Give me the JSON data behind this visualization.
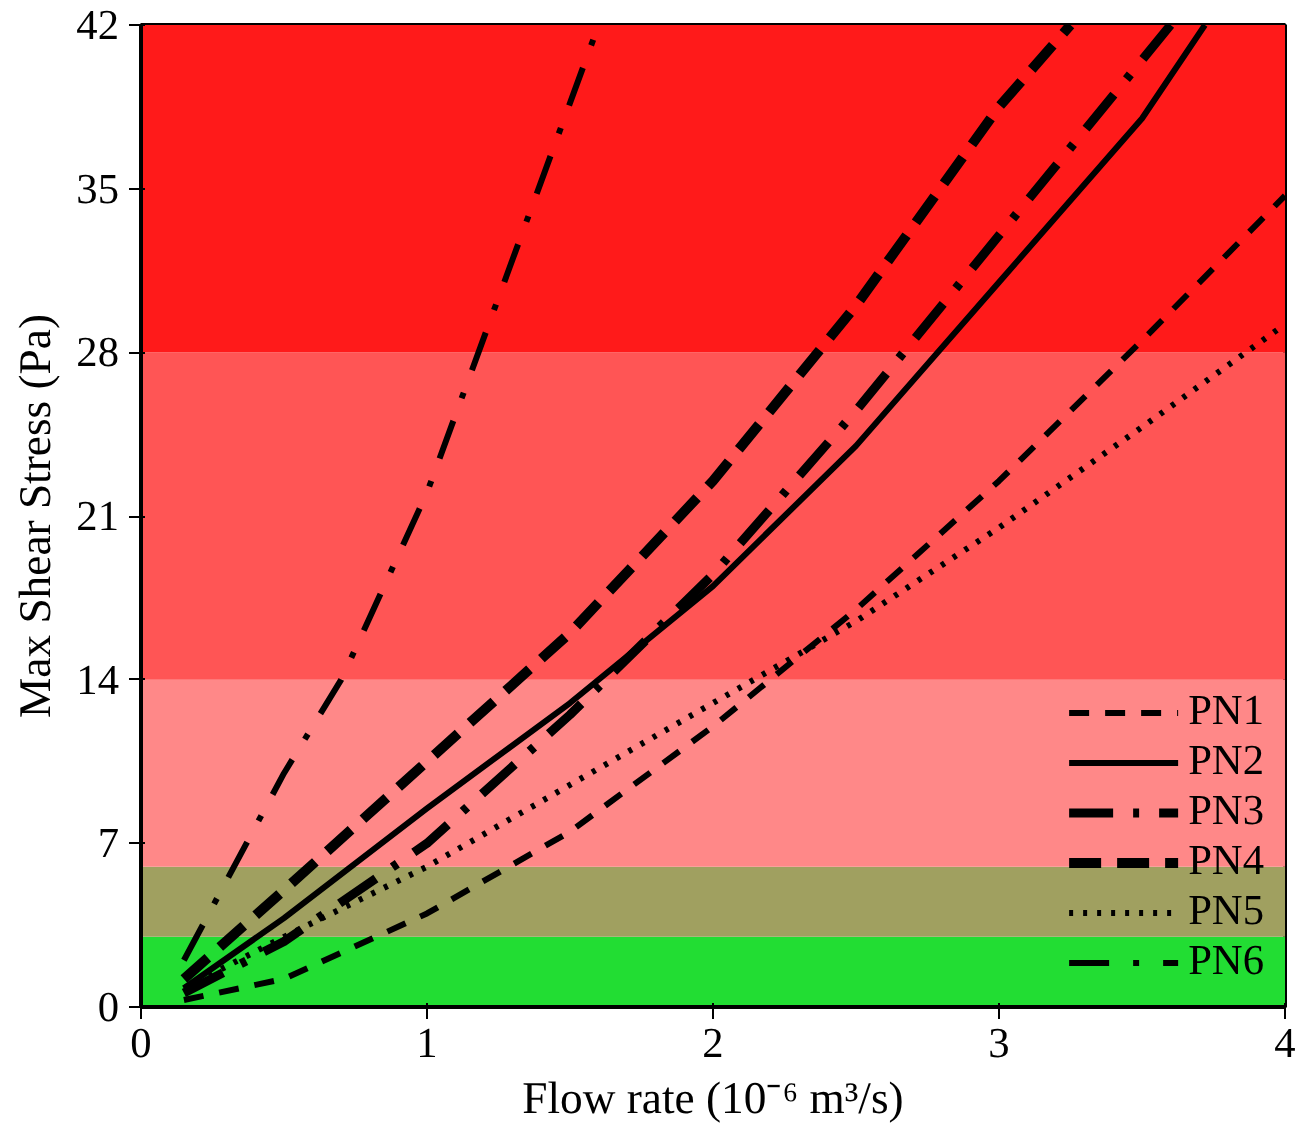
{
  "chart_data": {
    "type": "line",
    "xlabel": "Flow rate (10⁻⁶ m³/s)",
    "ylabel": "Max Shear Stress (Pa)",
    "xlim": [
      0,
      4
    ],
    "xticks": [
      0,
      1,
      2,
      3,
      4
    ],
    "ylim": [
      0,
      42
    ],
    "yticks": [
      0,
      7,
      14,
      21,
      28,
      35,
      42
    ],
    "grid": false,
    "legend": "bottom right",
    "bands": [
      {
        "axis": "y",
        "from": 0,
        "to": 3,
        "color": "#22dd33"
      },
      {
        "axis": "y",
        "from": 3,
        "to": 6,
        "color": "#a0a060"
      },
      {
        "axis": "y",
        "from": 6,
        "to": 14,
        "color": "#ff8888"
      },
      {
        "axis": "y",
        "from": 14,
        "to": 28,
        "color": "#ff5555"
      },
      {
        "axis": "y",
        "from": 28,
        "to": 42,
        "color": "#ff1a1a"
      }
    ],
    "series": [
      {
        "name": "PN1",
        "color": "#000000",
        "line_style": "dashed",
        "x": [
          0.15,
          0.5,
          1,
          1.5,
          2,
          2.5,
          3,
          3.5,
          4
        ],
        "values": [
          0.3,
          1.2,
          4,
          7.5,
          12,
          17,
          22.5,
          28.5,
          34.7
        ]
      },
      {
        "name": "PN2",
        "color": "#000000",
        "line_style": "solid",
        "x": [
          0.15,
          0.5,
          1,
          1.5,
          2,
          2.5,
          3,
          3.5,
          3.72
        ],
        "values": [
          0.8,
          3.8,
          8.5,
          13,
          18,
          24,
          31,
          38,
          42
        ]
      },
      {
        "name": "PN3",
        "color": "#000000",
        "line_style": "dashdot",
        "x": [
          0.15,
          0.5,
          1,
          1.5,
          2,
          2.5,
          3,
          3.5,
          3.6
        ],
        "values": [
          0.6,
          2.8,
          7,
          12.5,
          18.5,
          25.5,
          33,
          40.5,
          42
        ]
      },
      {
        "name": "PN4",
        "color": "#000000",
        "line_style": "longdash",
        "x": [
          0.15,
          0.5,
          1,
          1.5,
          2,
          2.5,
          3,
          3.25
        ],
        "values": [
          1.2,
          5,
          10.5,
          16,
          22.5,
          30,
          38.5,
          42
        ]
      },
      {
        "name": "PN5",
        "color": "#000000",
        "line_style": "dotted",
        "x": [
          0.15,
          0.5,
          1,
          1.5,
          2,
          2.5,
          3,
          3.5,
          4
        ],
        "values": [
          0.8,
          3,
          6,
          9.5,
          13,
          16.5,
          20.5,
          24.8,
          29.2
        ]
      },
      {
        "name": "PN6",
        "color": "#000000",
        "line_style": "dashdot_thin",
        "x": [
          0.15,
          0.5,
          0.7,
          1,
          1.3,
          1.6
        ],
        "values": [
          2,
          10,
          14,
          22,
          32,
          42
        ]
      }
    ]
  }
}
